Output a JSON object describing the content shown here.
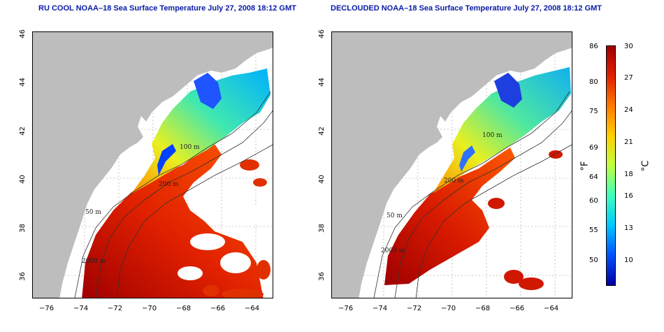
{
  "panels": [
    {
      "title": "RU COOL NOAA–18 Sea Surface Temperature July 27, 2008 18:12 GMT",
      "variant": "cloudy"
    },
    {
      "title": "DECLOUDED NOAA–18 Sea Surface Temperature July 27, 2008 18:12 GMT",
      "variant": "declouded"
    }
  ],
  "axes": {
    "lon_ticks": [
      "−76",
      "−74",
      "−72",
      "−70",
      "−68",
      "−66",
      "−64"
    ],
    "lat_ticks": [
      "46",
      "44",
      "42",
      "40",
      "38",
      "36"
    ],
    "lon_range": [
      -77,
      -63
    ],
    "lat_range": [
      35,
      46
    ]
  },
  "isobath_labels": [
    "50 m",
    "100 m",
    "200 m",
    "2000 m"
  ],
  "colorbar": {
    "fahrenheit_label": "°F",
    "celsius_label": "°C",
    "fahrenheit_ticks": [
      "86",
      "80",
      "75",
      "69",
      "64",
      "60",
      "55",
      "50"
    ],
    "celsius_ticks": [
      "30",
      "27",
      "24",
      "21",
      "18",
      "16",
      "13",
      "10"
    ],
    "colors": [
      "#0000a0",
      "#0050ff",
      "#00c8ff",
      "#40ffc0",
      "#c0ff40",
      "#ffd000",
      "#ff7a00",
      "#e02000",
      "#a00000"
    ]
  },
  "colors": {
    "land": "#bdbdbd",
    "ocean_cloud": "#ffffff",
    "title": "#0a1aa6",
    "grid": "#b8b8b8"
  }
}
